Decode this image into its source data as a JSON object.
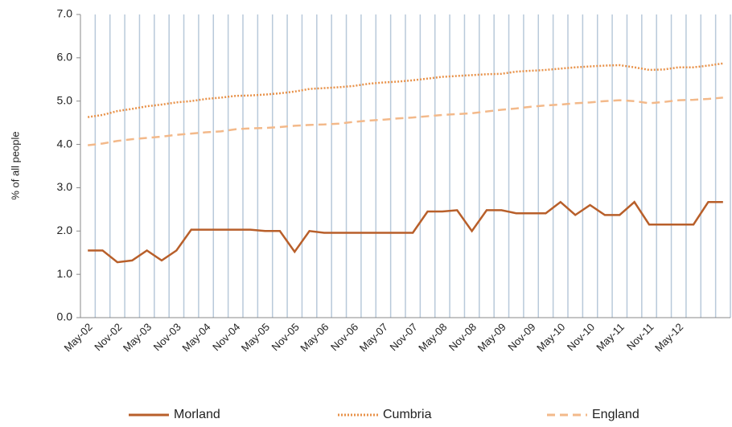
{
  "chart_data": {
    "type": "line",
    "y_label": "% of all people",
    "categories": [
      "May-02",
      null,
      "Nov-02",
      null,
      "May-03",
      null,
      "Nov-03",
      null,
      "May-04",
      null,
      "Nov-04",
      null,
      "May-05",
      null,
      "Nov-05",
      null,
      "May-06",
      null,
      "Nov-06",
      null,
      "May-07",
      null,
      "Nov-07",
      null,
      "May-08",
      null,
      "Nov-08",
      null,
      "May-09",
      null,
      "Nov-09",
      null,
      "May-10",
      null,
      "Nov-10",
      null,
      "May-11",
      null,
      "Nov-11",
      null,
      "May-12",
      null,
      null,
      null
    ],
    "series": [
      {
        "name": "Morland",
        "color": "#b85f2a",
        "dash": "solid",
        "values": [
          1.55,
          1.55,
          1.28,
          1.32,
          1.55,
          1.32,
          1.55,
          2.03,
          2.03,
          2.03,
          2.03,
          2.03,
          2.0,
          2.0,
          1.52,
          2.0,
          1.96,
          1.96,
          1.96,
          1.96,
          1.96,
          1.96,
          1.96,
          2.45,
          2.45,
          2.48,
          2.0,
          2.48,
          2.48,
          2.41,
          2.41,
          2.41,
          2.67,
          2.37,
          2.6,
          2.37,
          2.37,
          2.67,
          2.15,
          2.15,
          2.15,
          2.15,
          2.67,
          2.67
        ]
      },
      {
        "name": "Cumbria",
        "color": "#e8924a",
        "dash": "dotted",
        "values": [
          4.63,
          4.68,
          4.77,
          4.82,
          4.88,
          4.92,
          4.97,
          5.0,
          5.05,
          5.08,
          5.12,
          5.13,
          5.15,
          5.18,
          5.22,
          5.28,
          5.3,
          5.32,
          5.35,
          5.4,
          5.43,
          5.45,
          5.48,
          5.52,
          5.56,
          5.58,
          5.6,
          5.62,
          5.63,
          5.68,
          5.7,
          5.72,
          5.75,
          5.78,
          5.8,
          5.82,
          5.83,
          5.78,
          5.72,
          5.73,
          5.78,
          5.78,
          5.82,
          5.87
        ]
      },
      {
        "name": "England",
        "color": "#f3b98a",
        "dash": "dashed",
        "values": [
          3.98,
          4.02,
          4.08,
          4.12,
          4.15,
          4.18,
          4.22,
          4.25,
          4.28,
          4.3,
          4.35,
          4.37,
          4.38,
          4.4,
          4.43,
          4.45,
          4.46,
          4.48,
          4.52,
          4.55,
          4.57,
          4.6,
          4.62,
          4.65,
          4.68,
          4.7,
          4.72,
          4.76,
          4.8,
          4.83,
          4.87,
          4.9,
          4.92,
          4.95,
          4.97,
          5.0,
          5.02,
          5.0,
          4.95,
          4.98,
          5.02,
          5.03,
          5.05,
          5.08
        ]
      }
    ],
    "ylim": [
      0,
      7
    ],
    "yticks": [
      {
        "value": 0,
        "label": "0.0"
      },
      {
        "value": 1,
        "label": "1.0"
      },
      {
        "value": 2,
        "label": "2.0"
      },
      {
        "value": 3,
        "label": "3.0"
      },
      {
        "value": 4,
        "label": "4.0"
      },
      {
        "value": 5,
        "label": "5.0"
      },
      {
        "value": 6,
        "label": "6.0"
      },
      {
        "value": 7,
        "label": "7.0"
      }
    ],
    "vertical_grid": true,
    "grid_color": "#b8c9da",
    "legend": "bottom"
  }
}
